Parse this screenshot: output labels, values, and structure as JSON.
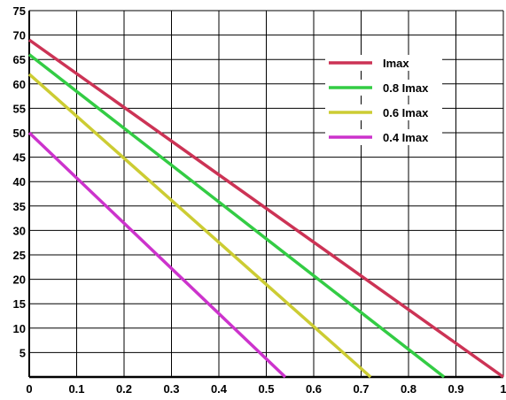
{
  "chart_data": {
    "type": "line",
    "title": "",
    "xlabel": "",
    "ylabel": "",
    "xlim": [
      0,
      1
    ],
    "ylim": [
      0,
      75
    ],
    "x_ticks": [
      "0",
      "0.1",
      "0.2",
      "0.3",
      "0.4",
      "0.5",
      "0.6",
      "0.7",
      "0.8",
      "0.9",
      "1"
    ],
    "y_ticks": [
      "5",
      "10",
      "15",
      "20",
      "25",
      "30",
      "35",
      "40",
      "45",
      "50",
      "55",
      "60",
      "65",
      "70",
      "75"
    ],
    "grid": true,
    "legend_position": "top-right",
    "series": [
      {
        "name": "Imax",
        "color": "#cc3355",
        "points": [
          [
            0,
            69
          ],
          [
            1,
            0
          ]
        ]
      },
      {
        "name": "0.8 Imax",
        "color": "#33cc44",
        "points": [
          [
            0,
            66
          ],
          [
            0.875,
            0
          ]
        ]
      },
      {
        "name": "0.6 Imax",
        "color": "#cccc33",
        "points": [
          [
            0,
            62
          ],
          [
            0.72,
            0
          ]
        ]
      },
      {
        "name": "0.4 Imax",
        "color": "#cc33cc",
        "points": [
          [
            0,
            50
          ],
          [
            0.54,
            0
          ]
        ]
      }
    ]
  }
}
